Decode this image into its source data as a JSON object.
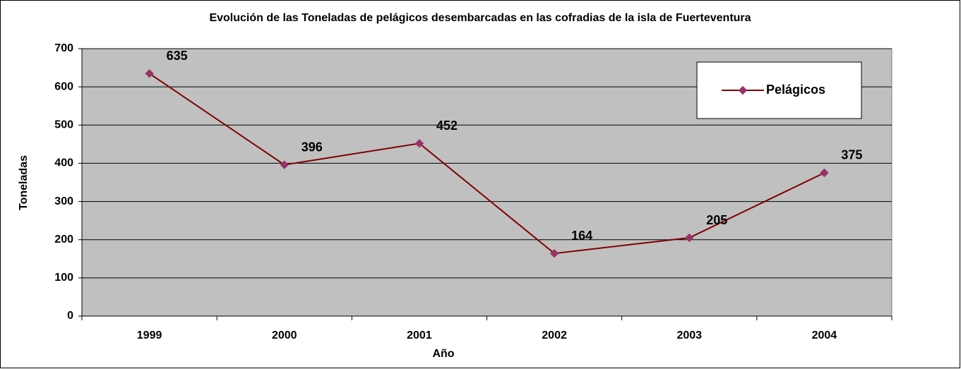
{
  "chart_data": {
    "type": "line",
    "title": "Evolución de las Toneladas de pelágicos desembarcadas en las cofradias de la isla de Fuerteventura",
    "x_label": "Año",
    "y_label": "Toneladas",
    "categories": [
      "1999",
      "2000",
      "2001",
      "2002",
      "2003",
      "2004"
    ],
    "series": [
      {
        "name": "Pelágicos",
        "color": "#800000",
        "marker_color": "#993366",
        "values": [
          635,
          396,
          452,
          164,
          205,
          375
        ]
      }
    ],
    "ylim": [
      0,
      700
    ],
    "yticks": [
      0,
      100,
      200,
      300,
      400,
      500,
      600,
      700
    ],
    "grid": true,
    "legend": "upper right"
  }
}
